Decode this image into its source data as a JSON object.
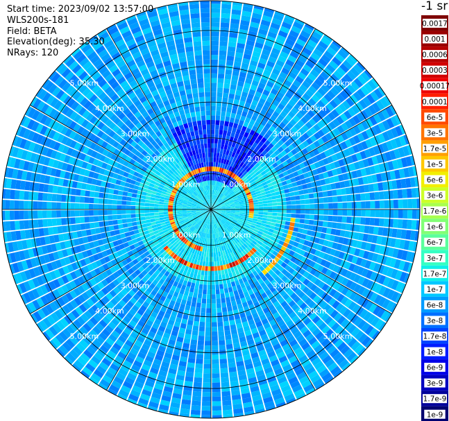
{
  "info": {
    "start_time": "Start time: 2023/09/02 13:57:00",
    "instrument": "WLS200s-181",
    "field": "Field: BETA",
    "elevation": "Elevation(deg): 35.30",
    "nrays": "NRays: 120"
  },
  "colorbar": {
    "unit": "-1 sr",
    "labels": [
      "0.0017",
      "0.001",
      "0.0006",
      "0.0003",
      "0.00017",
      "0.0001",
      "6e-5",
      "3e-5",
      "1.7e-5",
      "1e-5",
      "6e-6",
      "3e-6",
      "1.7e-6",
      "1e-6",
      "6e-7",
      "3e-7",
      "1.7e-7",
      "1e-7",
      "6e-8",
      "3e-8",
      "1.7e-8",
      "1e-8",
      "6e-9",
      "3e-9",
      "1.7e-9",
      "1e-9"
    ],
    "colors": [
      "#7f0000",
      "#990000",
      "#b50000",
      "#d10000",
      "#ed0000",
      "#ff1e00",
      "#ff4a00",
      "#ff7400",
      "#ff9f00",
      "#ffc800",
      "#f2ef00",
      "#cdff29",
      "#a8ff4e",
      "#81ff75",
      "#5bff9c",
      "#34ffc3",
      "#10f0e8",
      "#00c8ff",
      "#009cff",
      "#0070ff",
      "#0044ff",
      "#001cff",
      "#0000e8",
      "#0000c0",
      "#00009a",
      "#000070"
    ]
  },
  "chart_data": {
    "type": "heatmap",
    "projection": "polar (PPI scan)",
    "field": "BETA",
    "elevation_deg": 35.3,
    "n_rays": 120,
    "range_unit": "km",
    "range_rings_km": [
      1.0,
      2.0,
      3.0,
      4.0,
      5.0
    ],
    "ring_labels": [
      "1.00km",
      "2.00km",
      "3.00km",
      "4.00km",
      "5.00km"
    ],
    "max_range_km": 5.83,
    "spoke_angles_deg": [
      0,
      30,
      60,
      90,
      120,
      150,
      180,
      210,
      240,
      270,
      300,
      330
    ],
    "color_scale": "log",
    "colorbar_range": [
      1e-09,
      0.0017
    ],
    "features": {
      "far_field_background": "≈3e-8 to 1.7e-7 (blue-cyan)",
      "inner_region": "≈1e-7 to 1e-6 (cyan)",
      "north_sector_near_field": "≈1e-9 to 1e-8 (dark blue)",
      "cloud_ring_inner_km": 0.95,
      "cloud_ring_outer_km": 1.55,
      "cloud_ring_value": "≈1e-5 to 0.0003 (yellow-red)"
    }
  }
}
